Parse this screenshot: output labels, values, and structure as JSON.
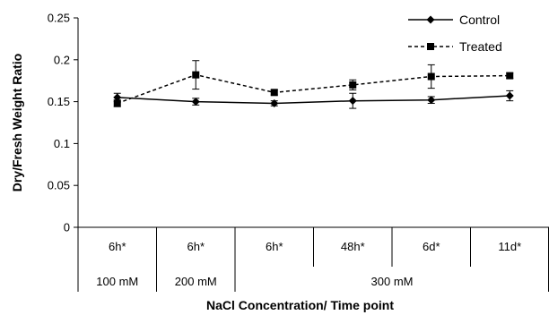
{
  "chart_data": {
    "type": "line",
    "title": "",
    "xlabel": "NaCl Concentration/ Time point",
    "ylabel": "Dry/Fresh Weight Ratio",
    "ylim": [
      0,
      0.25
    ],
    "yticks": [
      "0",
      "0.05",
      "0.1",
      "0.15",
      "0.2",
      "0.25"
    ],
    "categories": [
      "6h*",
      "6h*",
      "6h*",
      "48h*",
      "6d*",
      "11d*"
    ],
    "groups": [
      {
        "label": "100 mM",
        "span": 1
      },
      {
        "label": "200 mM",
        "span": 1
      },
      {
        "label": "300 mM",
        "span": 4
      }
    ],
    "legend_position": "top-right",
    "grid": false,
    "series": [
      {
        "name": "Control",
        "style": "solid",
        "marker": "diamond",
        "color": "#000000",
        "values": [
          0.155,
          0.15,
          0.148,
          0.151,
          0.152,
          0.157
        ],
        "errors": [
          0.005,
          0.004,
          0.003,
          0.009,
          0.004,
          0.006
        ]
      },
      {
        "name": "Treated",
        "style": "dashed",
        "marker": "square",
        "color": "#000000",
        "values": [
          0.148,
          0.182,
          0.161,
          0.17,
          0.18,
          0.181
        ],
        "errors": [
          0.004,
          0.017,
          0.003,
          0.006,
          0.014,
          0.003
        ]
      }
    ]
  }
}
